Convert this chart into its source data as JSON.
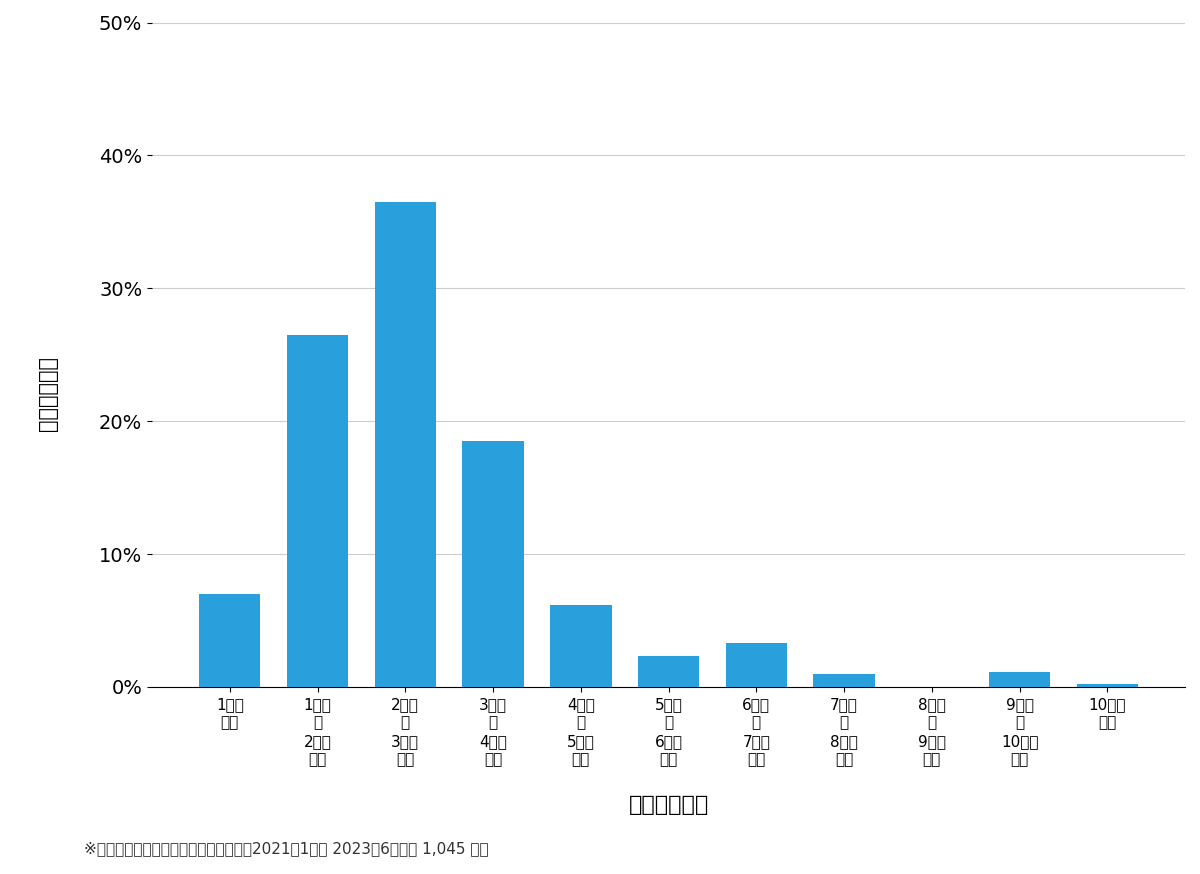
{
  "categories": [
    "1万円\n未満",
    "1万円\n〜\n2万円\n未満",
    "2万円\n〜\n3万円\n未満",
    "3万円\n〜\n4万円\n未満",
    "4万円\n〜\n5万円\n未満",
    "5万円\n〜\n6万円\n未満",
    "6万円\n〜\n7万円\n未満",
    "7万円\n〜\n8万円\n未満",
    "8万円\n〜\n9万円\n未満",
    "9万円\n〜\n10万円\n未満",
    "10万円\n以上"
  ],
  "values": [
    7.0,
    26.5,
    36.5,
    18.5,
    6.2,
    2.3,
    3.3,
    1.0,
    0.0,
    1.1,
    0.2
  ],
  "bar_color": "#29A0DC",
  "ylabel": "費用帯の割合",
  "xlabel": "費用帯（円）",
  "footnote": "※弊社受付の案件を対象に集計（期間：2021年1月～ 2023年6月、計 1,045 件）",
  "ymax": 50,
  "yticks": [
    0,
    10,
    20,
    30,
    40,
    50
  ],
  "ytick_labels": [
    "0%",
    "10%",
    "20%",
    "30%",
    "40%",
    "50%"
  ],
  "bg_color": "#FFFFFF"
}
